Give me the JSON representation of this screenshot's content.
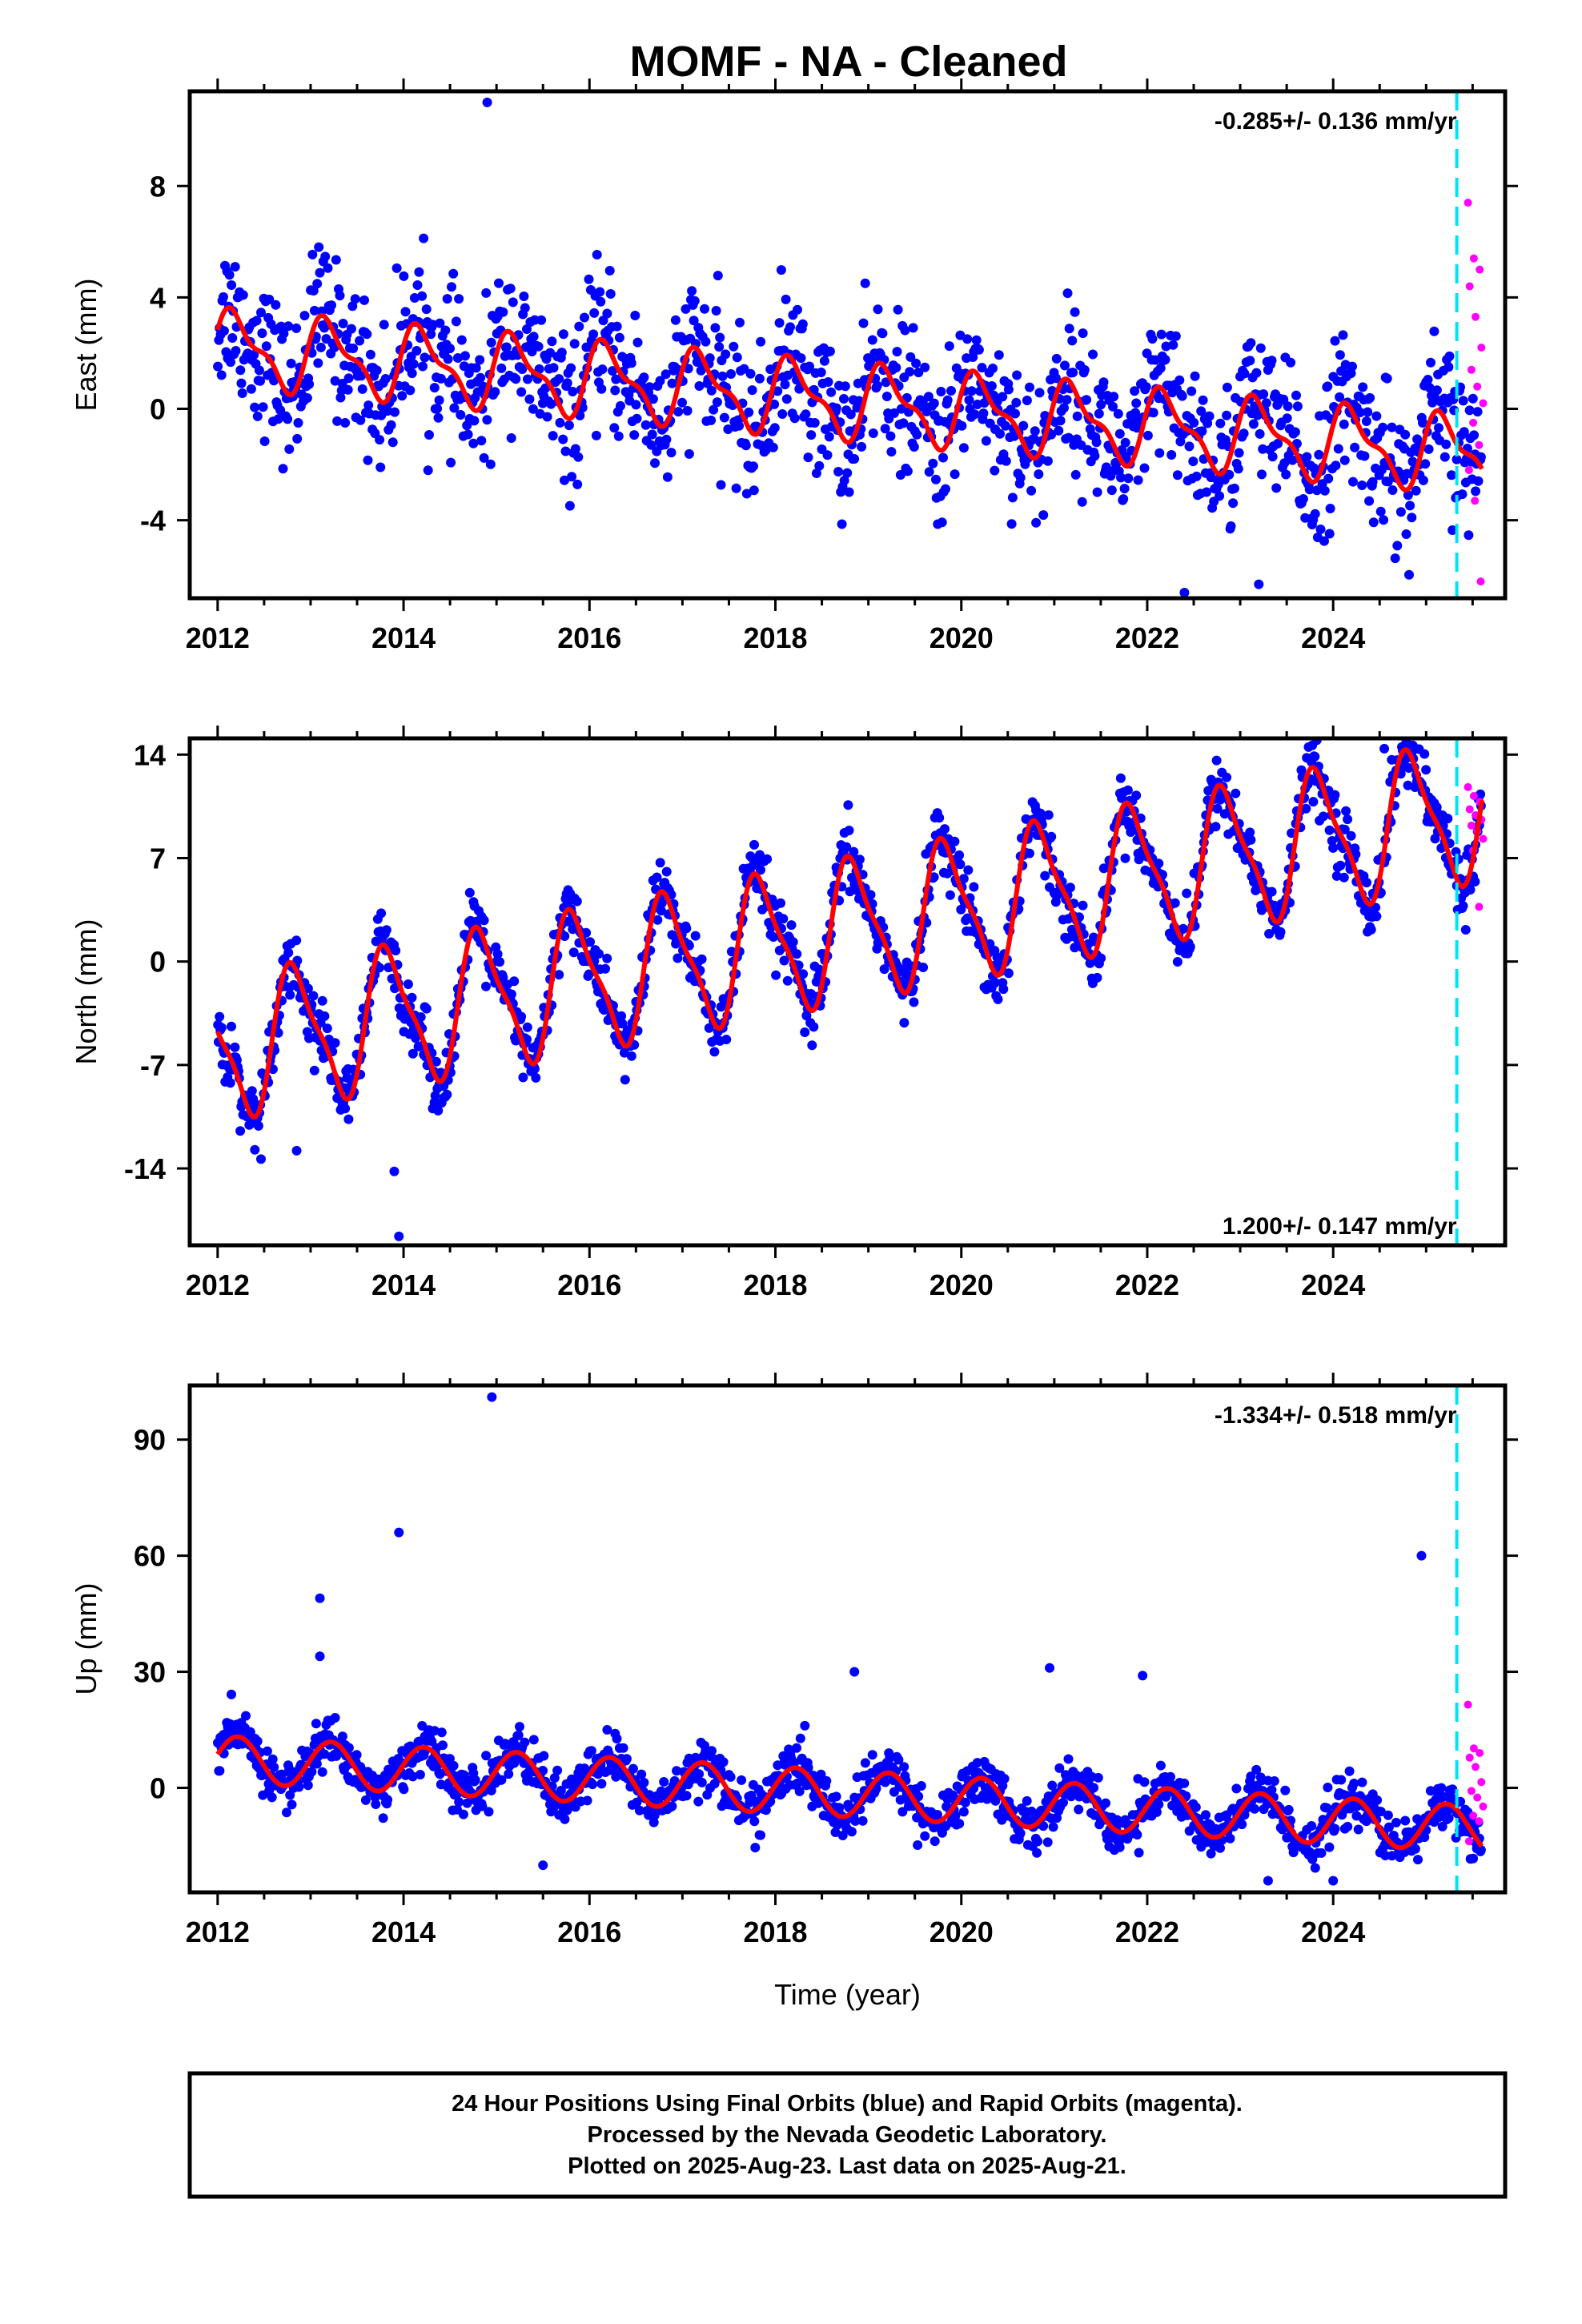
{
  "title": "MOMF  - NA - Cleaned",
  "footer": {
    "line1": "24 Hour Positions Using Final Orbits (blue) and Rapid Orbits (magenta).",
    "line2": "Processed by the Nevada Geodetic Laboratory.",
    "line3": "Plotted on 2025-Aug-23. Last data on 2025-Aug-21."
  },
  "colors": {
    "final": "#0000ff",
    "rapid": "#ff00ff",
    "model": "#ff0000",
    "marker": "#00e5ee"
  },
  "chart_data": [
    {
      "id": "east",
      "type": "scatter",
      "ylabel": "East (mm)",
      "xlabel": "",
      "rate_label": "-0.285+/- 0.136 mm/yr",
      "rate_position": "top-right",
      "xlim": [
        2011.7,
        2025.85
      ],
      "ylim": [
        -6.8,
        11.4
      ],
      "xticks": [
        "2012",
        "2014",
        "2016",
        "2018",
        "2020",
        "2022",
        "2024"
      ],
      "yticks": [
        "8",
        "4",
        "0",
        "-4"
      ],
      "ytick_values": [
        8,
        4,
        0,
        -4
      ],
      "marker_line_x": 2025.33,
      "trend": {
        "offset": 2.2,
        "rate": -0.285,
        "annual_amp": 1.2,
        "semi_amp": 0.5,
        "phase": 0.3,
        "t0": 2012.0,
        "end": 2025.6
      },
      "scatter_sigma": 1.3,
      "outliers": [
        {
          "x": 2014.9,
          "y": 11.0
        },
        {
          "x": 2022.4,
          "y": -6.6
        },
        {
          "x": 2023.2,
          "y": -6.3
        }
      ],
      "rapid": {
        "x_range": [
          2025.45,
          2025.62
        ],
        "values": [
          7.4,
          5.4,
          5.0,
          4.4,
          3.3,
          2.2,
          1.4,
          0.8,
          0.2,
          -0.5,
          -1.3,
          -2.2,
          -3.3,
          -6.2
        ]
      }
    },
    {
      "id": "north",
      "type": "scatter",
      "ylabel": "North (mm)",
      "xlabel": "",
      "rate_label": "1.200+/- 0.147 mm/yr",
      "rate_position": "bottom-right",
      "xlim": [
        2011.7,
        2025.85
      ],
      "ylim": [
        -19.2,
        15.1
      ],
      "xticks": [
        "2012",
        "2014",
        "2016",
        "2018",
        "2020",
        "2022",
        "2024"
      ],
      "yticks": [
        "14",
        "7",
        "0",
        "-7",
        "-14"
      ],
      "ytick_values": [
        14,
        7,
        0,
        -7,
        -14
      ],
      "marker_line_x": 2025.33,
      "trend": {
        "offset": -6.0,
        "rate": 1.2,
        "annual_amp": 4.5,
        "semi_amp": 1.2,
        "phase": 2.6,
        "t0": 2012.0,
        "end": 2025.6
      },
      "scatter_sigma": 1.1,
      "outliers": [
        {
          "x": 2013.9,
          "y": -14.2
        },
        {
          "x": 2013.95,
          "y": -18.6
        },
        {
          "x": 2012.85,
          "y": -12.8
        },
        {
          "x": 2024.55,
          "y": 14.4
        }
      ],
      "rapid": {
        "x_range": [
          2025.45,
          2025.62
        ],
        "values": [
          11.8,
          11.2,
          10.8,
          10.3,
          9.9,
          9.6,
          9.2,
          8.8,
          8.3,
          7.5,
          3.7
        ]
      }
    },
    {
      "id": "up",
      "type": "scatter",
      "ylabel": "Up (mm)",
      "xlabel": "Time (year)",
      "rate_label": "-1.334+/- 0.518 mm/yr",
      "rate_position": "top-right",
      "xlim": [
        2011.7,
        2025.85
      ],
      "ylim": [
        -27,
        104
      ],
      "xticks": [
        "2012",
        "2014",
        "2016",
        "2018",
        "2020",
        "2022",
        "2024"
      ],
      "yticks": [
        "90",
        "60",
        "30",
        "0"
      ],
      "ytick_values": [
        90,
        60,
        30,
        0
      ],
      "marker_line_x": 2025.33,
      "trend": {
        "offset": 7.5,
        "rate": -1.334,
        "annual_amp": 6.0,
        "semi_amp": 0.0,
        "phase": 0.2,
        "t0": 2012.0,
        "end": 2025.6
      },
      "scatter_sigma": 3.2,
      "outliers": [
        {
          "x": 2013.1,
          "y": 49
        },
        {
          "x": 2013.1,
          "y": 34
        },
        {
          "x": 2013.95,
          "y": 66
        },
        {
          "x": 2014.95,
          "y": 101
        },
        {
          "x": 2018.85,
          "y": 30
        },
        {
          "x": 2020.95,
          "y": 31
        },
        {
          "x": 2021.95,
          "y": 29
        },
        {
          "x": 2024.95,
          "y": 60
        },
        {
          "x": 2015.5,
          "y": -20
        },
        {
          "x": 2023.3,
          "y": -24
        },
        {
          "x": 2024.0,
          "y": -24
        }
      ],
      "rapid": {
        "x_range": [
          2025.45,
          2025.62
        ],
        "values": [
          21.5,
          10.2,
          9.0,
          7.8,
          5.4,
          1.5,
          -0.8,
          -2.5,
          -4.8,
          -7.2,
          -8.6,
          -13.8
        ]
      }
    }
  ]
}
